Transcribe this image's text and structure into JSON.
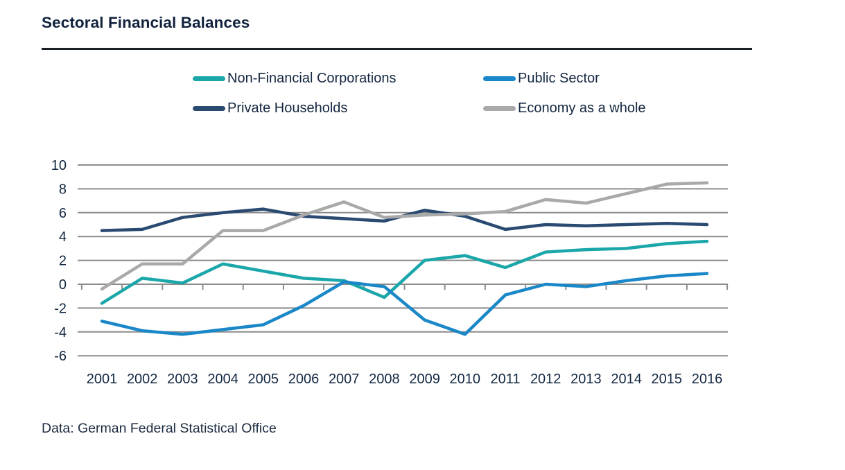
{
  "header": {
    "title": "Sectoral Financial Balances"
  },
  "footer": {
    "source": "Data: German Federal Statistical Office"
  },
  "colors": {
    "non_financial_corporations": "#1ba7a9",
    "public_sector": "#1a87c8",
    "private_households": "#2a4a72",
    "economy_as_a_whole": "#a9a9a9",
    "gridline": "#8c8c8c",
    "text": "#132740"
  },
  "chart_data": {
    "type": "line",
    "title": "Sectoral Financial Balances",
    "xlabel": "",
    "ylabel": "",
    "categories": [
      "2001",
      "2002",
      "2003",
      "2004",
      "2005",
      "2006",
      "2007",
      "2008",
      "2009",
      "2010",
      "2011",
      "2012",
      "2013",
      "2014",
      "2015",
      "2016"
    ],
    "series": [
      {
        "name": "Non-Financial Corporations",
        "color": "#1ba7a9",
        "values": [
          -1.6,
          0.5,
          0.1,
          1.7,
          1.1,
          0.5,
          0.3,
          -1.1,
          2.0,
          2.4,
          1.4,
          2.7,
          2.9,
          3.0,
          3.4,
          3.6
        ]
      },
      {
        "name": "Public Sector",
        "color": "#1a87c8",
        "values": [
          -3.1,
          -3.9,
          -4.2,
          -3.8,
          -3.4,
          -1.8,
          0.2,
          -0.2,
          -3.0,
          -4.2,
          -0.9,
          0.0,
          -0.2,
          0.3,
          0.7,
          0.9
        ]
      },
      {
        "name": "Private Households",
        "color": "#2a4a72",
        "values": [
          4.5,
          4.6,
          5.6,
          6.0,
          6.3,
          5.7,
          5.5,
          5.3,
          6.2,
          5.7,
          4.6,
          5.0,
          4.9,
          5.0,
          5.1,
          5.0
        ]
      },
      {
        "name": "Economy as a whole",
        "color": "#a9a9a9",
        "values": [
          -0.4,
          1.7,
          1.7,
          4.5,
          4.5,
          5.8,
          6.9,
          5.6,
          5.8,
          5.9,
          6.1,
          7.1,
          6.8,
          7.6,
          8.4,
          8.5
        ]
      }
    ],
    "y_ticks": [
      10,
      8,
      6,
      4,
      2,
      0,
      -2,
      -4,
      -6
    ],
    "ylim": [
      -6,
      10
    ],
    "grid": true,
    "legend_position": "top"
  }
}
